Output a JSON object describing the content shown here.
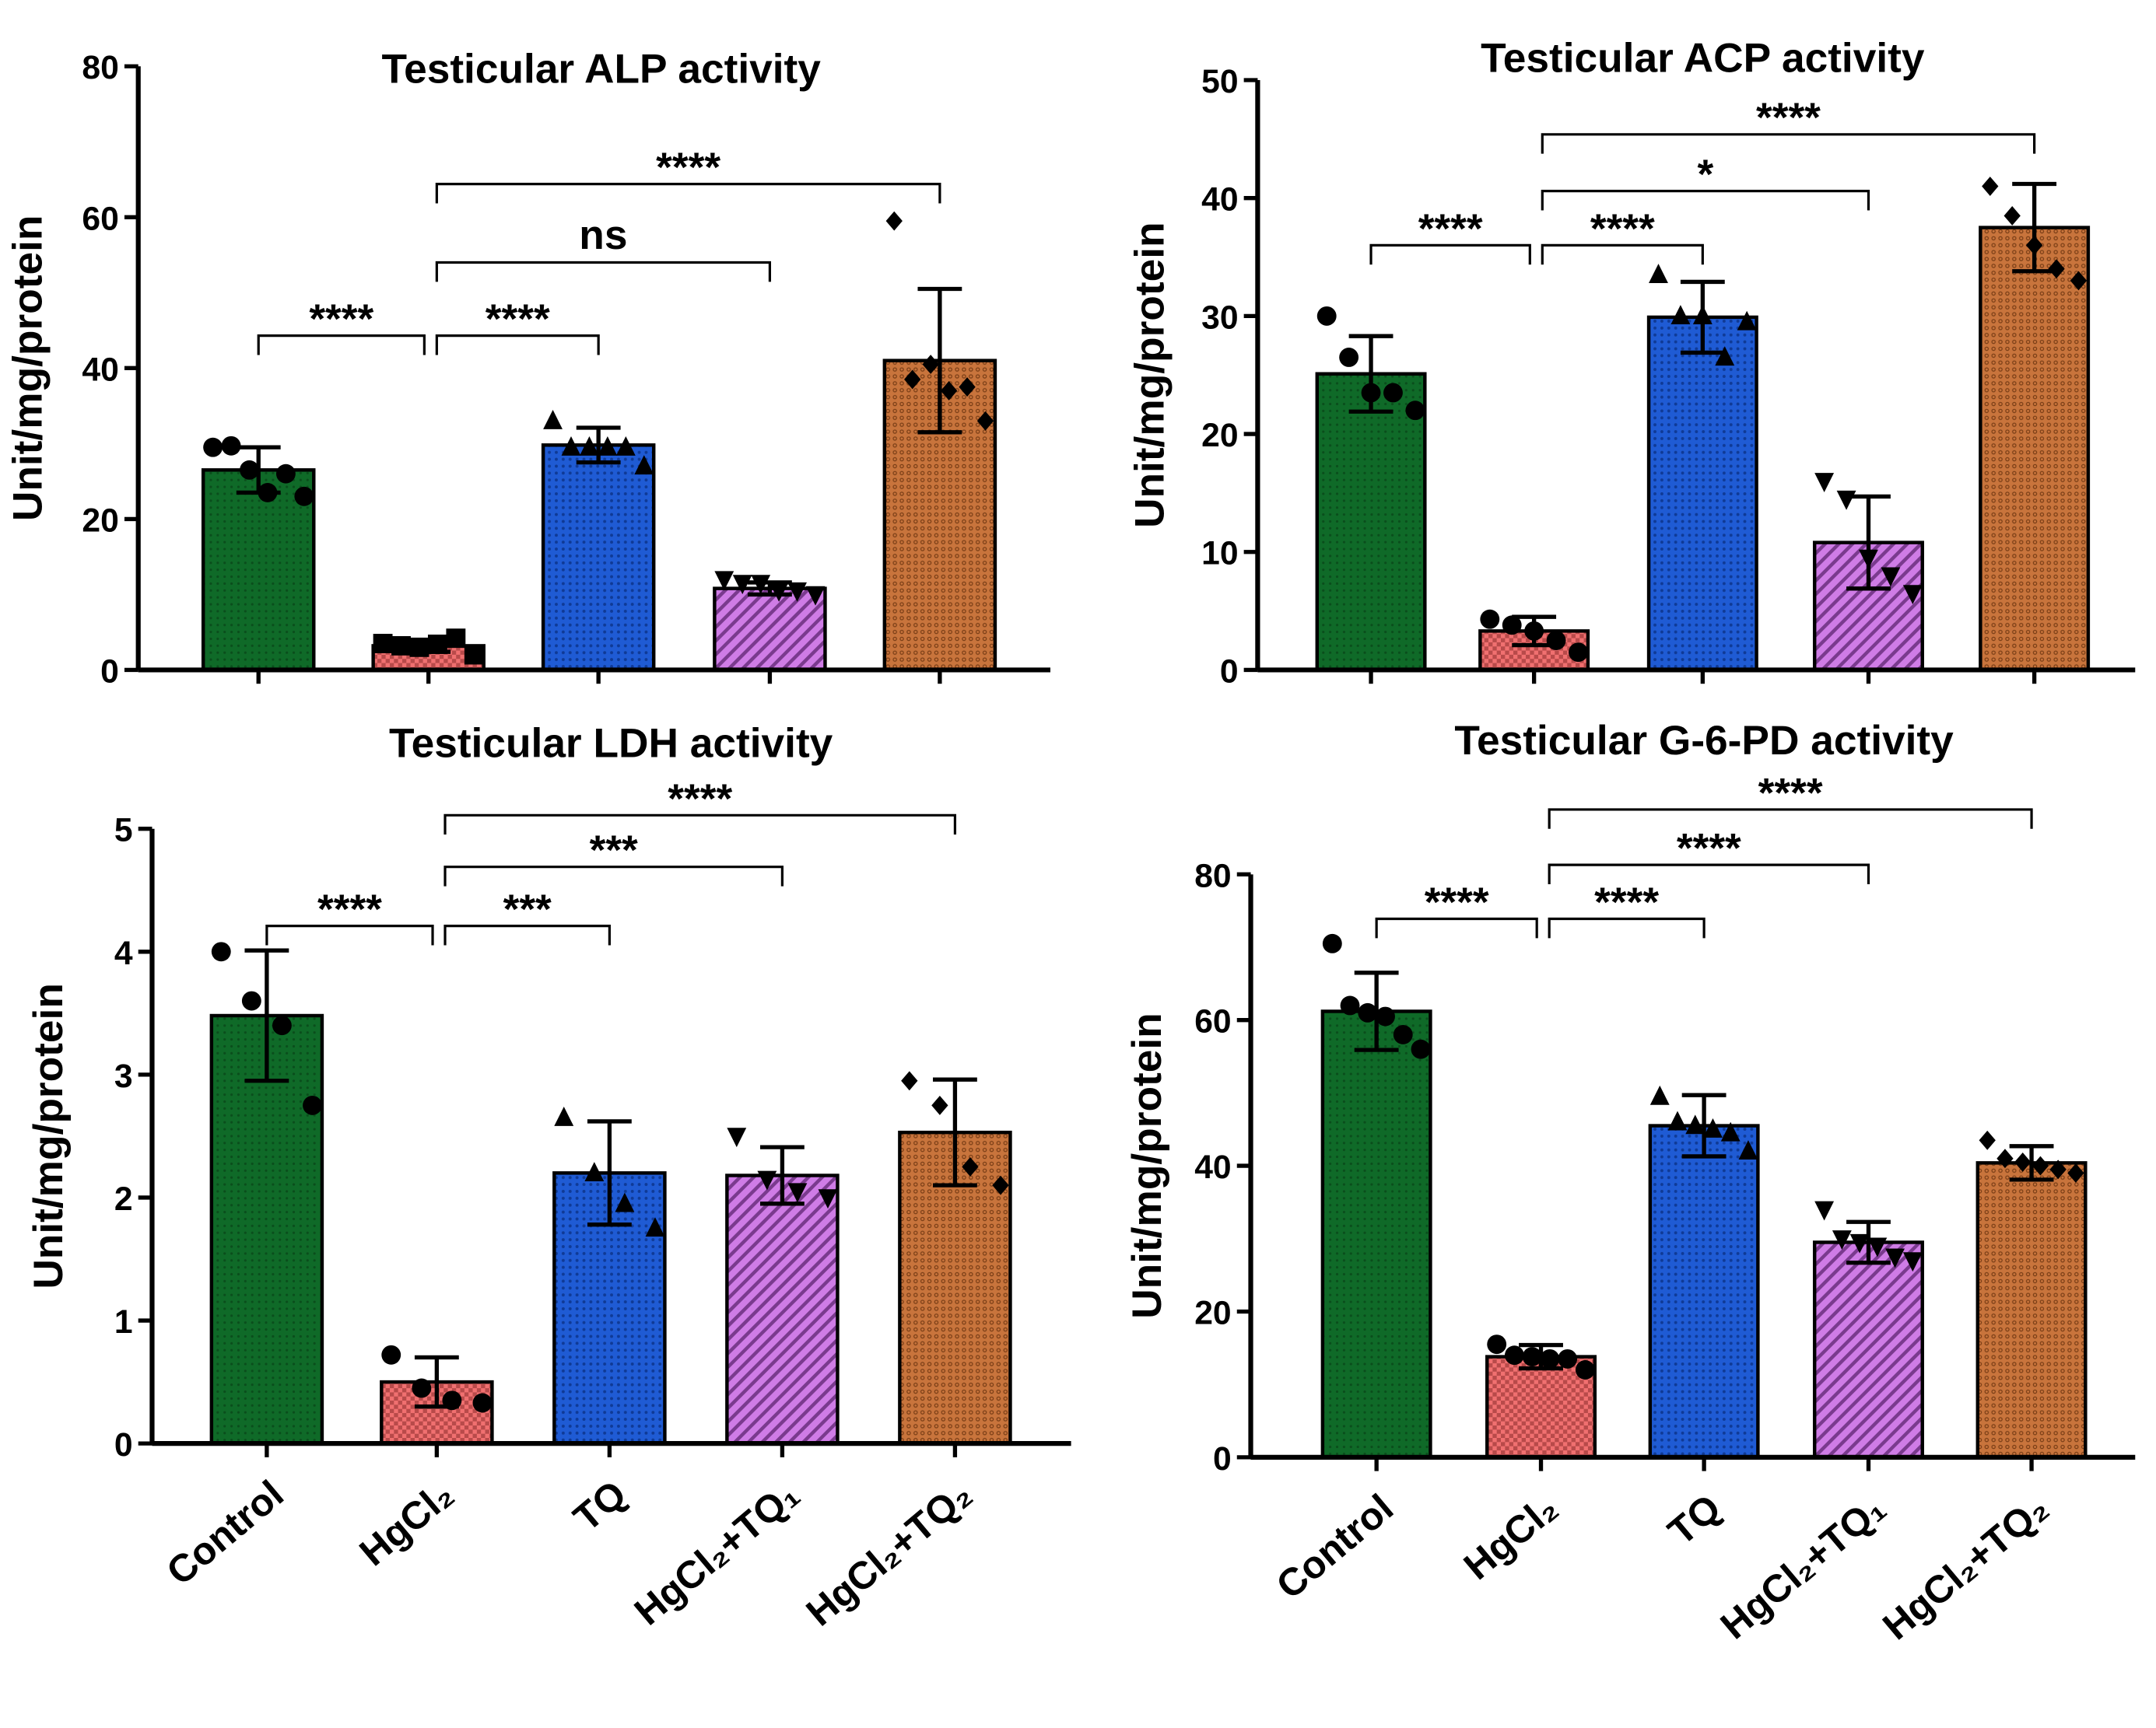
{
  "colors": {
    "Control": "#0f6a28",
    "HgCl2": "#f07070",
    "TQ": "#1f5bd4",
    "HgCl2+TQ1": "#cf7ce6",
    "HgCl2+TQ2": "#c8743c",
    "axis": "#000000"
  },
  "chart_data": [
    {
      "type": "bar",
      "title": "Testicular ALP activity",
      "ylabel": "Unit/mg/protein",
      "xlabel": "",
      "ylim": [
        0,
        80
      ],
      "yticks": [
        0,
        20,
        40,
        60,
        80
      ],
      "categories": [
        "Control",
        "HgCl₂",
        "TQ",
        "HgCl₂+TQ₁",
        "HgCl₂+TQ₂"
      ],
      "values": [
        26.5,
        3.2,
        29.8,
        10.8,
        41.0
      ],
      "sd": [
        3.0,
        0.8,
        2.3,
        0.8,
        9.5
      ],
      "points": [
        [
          29.5,
          29.7,
          26.5,
          23.5,
          26.0,
          23.0
        ],
        [
          3.5,
          3.2,
          3.0,
          3.4,
          4.2,
          2.0
        ],
        [
          33,
          29.5,
          29.5,
          29.5,
          29.5,
          27.0
        ],
        [
          12,
          11.5,
          11.5,
          10.5,
          10.5,
          10.0
        ],
        [
          59.5,
          38.5,
          40.5,
          37.0,
          37.5,
          33.0
        ]
      ],
      "markers": [
        "circle",
        "square",
        "triangle",
        "triangle-down",
        "diamond"
      ],
      "comparisons": [
        {
          "from": 0,
          "to": 1,
          "y": 44.3,
          "label": "****"
        },
        {
          "from": 1,
          "to": 2,
          "y": 44.3,
          "label": "****"
        },
        {
          "from": 1,
          "to": 3,
          "y": 54.0,
          "label": "ns"
        },
        {
          "from": 1,
          "to": 4,
          "y": 64.4,
          "label": "****"
        }
      ],
      "show_category_labels": false
    },
    {
      "type": "bar",
      "title": "Testicular ACP activity",
      "ylabel": "Unit/mg/protein",
      "xlabel": "",
      "ylim": [
        0,
        50
      ],
      "yticks": [
        0,
        10,
        20,
        30,
        40,
        50
      ],
      "categories": [
        "Control",
        "HgCl₂",
        "TQ",
        "HgCl₂+TQ₁",
        "HgCl₂+TQ₂"
      ],
      "values": [
        25.1,
        3.3,
        29.9,
        10.8,
        37.5
      ],
      "sd": [
        3.2,
        1.2,
        3.0,
        3.9,
        3.7
      ],
      "points": [
        [
          30.0,
          26.5,
          23.5,
          23.5,
          22.0
        ],
        [
          4.3,
          3.8,
          3.3,
          2.5,
          1.5
        ],
        [
          33.5,
          30.0,
          30.0,
          26.5,
          29.5
        ],
        [
          16.0,
          14.5,
          9.5,
          8.0,
          6.5
        ],
        [
          41.0,
          38.5,
          36.0,
          34.0,
          33.0
        ]
      ],
      "markers": [
        "circle",
        "circle",
        "triangle",
        "triangle-down",
        "diamond"
      ],
      "comparisons": [
        {
          "from": 0,
          "to": 1,
          "y": 36.0,
          "label": "****"
        },
        {
          "from": 1,
          "to": 2,
          "y": 36.0,
          "label": "****"
        },
        {
          "from": 1,
          "to": 3,
          "y": 40.6,
          "label": "*"
        },
        {
          "from": 1,
          "to": 4,
          "y": 45.4,
          "label": "****"
        }
      ],
      "show_category_labels": false
    },
    {
      "type": "bar",
      "title": "Testicular LDH activity",
      "ylabel": "Unit/mg/protein",
      "xlabel": "",
      "ylim": [
        0,
        5
      ],
      "yticks": [
        0,
        1,
        2,
        3,
        4,
        5
      ],
      "categories": [
        "Control",
        "HgCl₂",
        "TQ",
        "HgCl₂+TQ₁",
        "HgCl₂+TQ₂"
      ],
      "values": [
        3.48,
        0.5,
        2.2,
        2.18,
        2.53
      ],
      "sd": [
        0.53,
        0.2,
        0.42,
        0.23,
        0.43
      ],
      "points": [
        [
          4.0,
          3.6,
          3.4,
          2.75
        ],
        [
          0.72,
          0.45,
          0.35,
          0.33
        ],
        [
          2.65,
          2.2,
          1.95,
          1.75
        ],
        [
          2.5,
          2.15,
          2.05,
          2.0
        ],
        [
          2.95,
          2.75,
          2.25,
          2.1
        ]
      ],
      "markers": [
        "circle",
        "circle",
        "triangle",
        "triangle-down",
        "diamond"
      ],
      "comparisons": [
        {
          "from": 0,
          "to": 1,
          "y": 4.21,
          "label": "****"
        },
        {
          "from": 1,
          "to": 2,
          "y": 4.21,
          "label": "***"
        },
        {
          "from": 1,
          "to": 3,
          "y": 4.69,
          "label": "***"
        },
        {
          "from": 1,
          "to": 4,
          "y": 5.11,
          "label": "****"
        }
      ],
      "show_category_labels": true
    },
    {
      "type": "bar",
      "title": "Testicular G-6-PD activity",
      "ylabel": "Unit/mg/protein",
      "xlabel": "",
      "ylim": [
        0,
        80
      ],
      "yticks": [
        0,
        20,
        40,
        60,
        80
      ],
      "categories": [
        "Control",
        "HgCl₂",
        "TQ",
        "HgCl₂+TQ₁",
        "HgCl₂+TQ₂"
      ],
      "values": [
        61.2,
        13.8,
        45.5,
        29.5,
        40.4
      ],
      "sd": [
        5.3,
        1.6,
        4.2,
        2.8,
        2.3
      ],
      "points": [
        [
          70.5,
          62.0,
          61.0,
          60.5,
          58.0,
          56.0
        ],
        [
          15.5,
          14.0,
          13.8,
          13.5,
          13.5,
          12.0
        ],
        [
          49.5,
          46.0,
          45.5,
          45.0,
          44.5,
          42.0
        ],
        [
          34.0,
          30.0,
          29.5,
          29.0,
          27.5,
          27.0
        ],
        [
          43.5,
          41.0,
          40.5,
          40.0,
          39.5,
          39.0
        ]
      ],
      "markers": [
        "circle",
        "circle",
        "triangle",
        "triangle-down",
        "diamond"
      ],
      "comparisons": [
        {
          "from": 0,
          "to": 1,
          "y": 73.9,
          "label": "****"
        },
        {
          "from": 1,
          "to": 2,
          "y": 73.9,
          "label": "****"
        },
        {
          "from": 1,
          "to": 3,
          "y": 81.3,
          "label": "****"
        },
        {
          "from": 1,
          "to": 4,
          "y": 88.9,
          "label": "****"
        }
      ],
      "show_category_labels": true
    }
  ]
}
